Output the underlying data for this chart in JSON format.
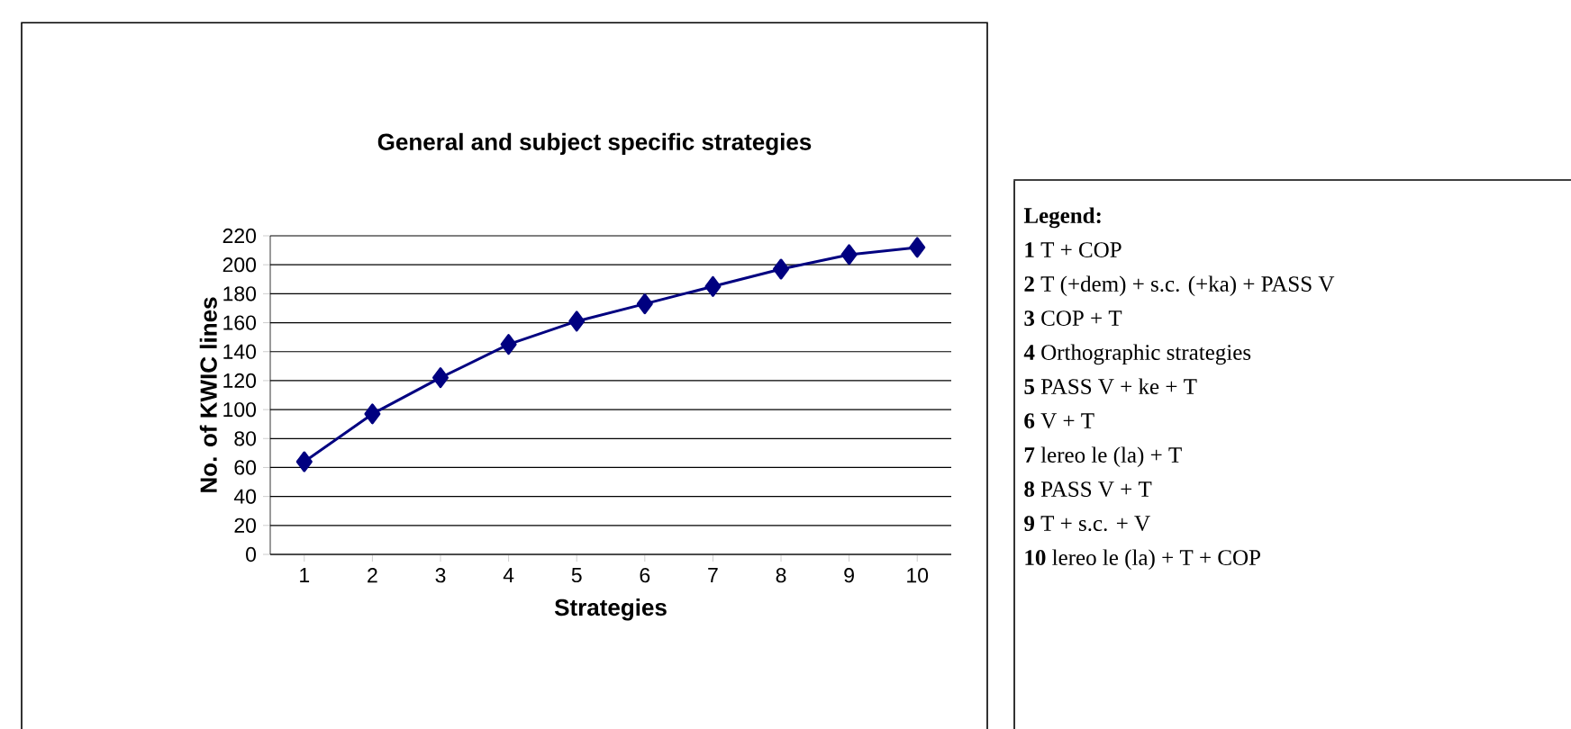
{
  "chart_data": {
    "type": "line",
    "title": "General and subject specific strategies",
    "xlabel": "Strategies",
    "ylabel": "No. of KWIC lines",
    "categories": [
      "1",
      "2",
      "3",
      "4",
      "5",
      "6",
      "7",
      "8",
      "9",
      "10"
    ],
    "series": [
      {
        "color": "#000080",
        "values": [
          64,
          97,
          122,
          145,
          161,
          173,
          185,
          197,
          207,
          212
        ]
      }
    ],
    "ylim": [
      0,
      220
    ],
    "yticks": [
      0,
      20,
      40,
      60,
      80,
      100,
      120,
      140,
      160,
      180,
      200,
      220
    ],
    "grid": "y",
    "marker": "diamond",
    "line_style": "solid",
    "annotations": [
      "**Legend:**",
      "**1** T + COP",
      "**2** T (+dem) + s.c. (+ka) + PASS V",
      "**3** COP + T",
      "**4** Orthographic strategies",
      "**5** PASS V + ke + T",
      "**6** V + T",
      "**7** lereo le (la) + T",
      "**8** PASS V + T",
      "**9** T + s.c. + V",
      "**10** lereo le (la) + T + COP"
    ]
  }
}
